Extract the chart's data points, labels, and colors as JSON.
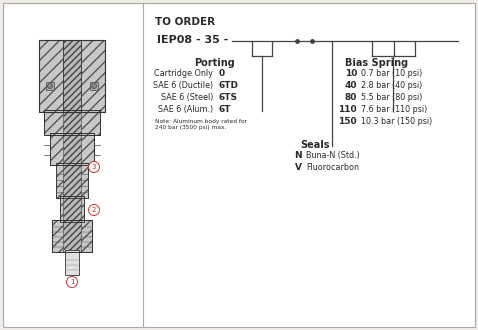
{
  "bg_color": "#f0ede8",
  "panel_bg": "#ffffff",
  "to_order_title": "TO ORDER",
  "model_prefix": "IEP08 - 35 -",
  "porting_title": "Porting",
  "porting_items": [
    [
      "Cartridge Only",
      "0"
    ],
    [
      "SAE 6 (Ductile)",
      "6TD"
    ],
    [
      "SAE 6 (Steel)",
      "6TS"
    ],
    [
      "SAE 6 (Alum.)",
      "6T"
    ]
  ],
  "porting_note": "Note: Aluminum body rated for\n240 bar (3500 psi) max.",
  "bias_spring_title": "Bias Spring",
  "bias_spring_items": [
    [
      "10",
      "0.7 bar (10 psi)"
    ],
    [
      "40",
      "2.8 bar (40 psi)"
    ],
    [
      "80",
      "5.5 bar (80 psi)"
    ],
    [
      "110",
      "7.6 bar (110 psi)"
    ],
    [
      "150",
      "10.3 bar (150 psi)"
    ]
  ],
  "seals_title": "Seals",
  "seals_items": [
    [
      "N",
      "Buna-N (Std.)"
    ],
    [
      "V",
      "Fluorocarbon"
    ]
  ],
  "text_color": "#2a2a2a",
  "line_color": "#444444",
  "hatch_fc": "#c8c8c8",
  "hatch_ec": "#555555"
}
